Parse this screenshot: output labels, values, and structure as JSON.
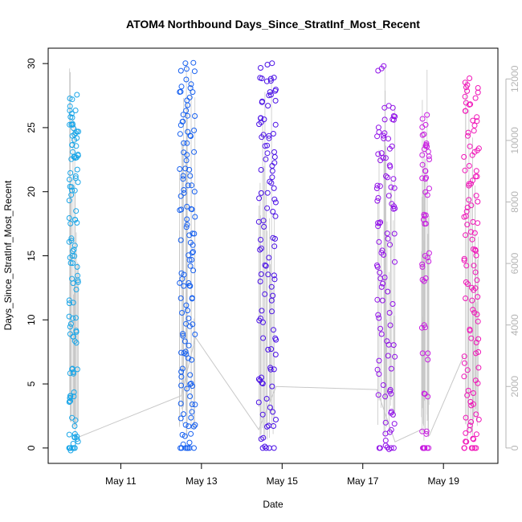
{
  "chart_data": {
    "type": "scatter",
    "title": "ATOM4 Northbound Days_Since_StratInf_Most_Recent",
    "xlabel": "Date",
    "ylabel": "Days_Since_StratInf_Most_Recent",
    "x_ticks": [
      "May 11",
      "May 13",
      "May 15",
      "May 17",
      "May 19"
    ],
    "x_tick_days": [
      11,
      13,
      15,
      17,
      19
    ],
    "xlim": [
      9.2,
      20.35
    ],
    "ylim": [
      -1.2,
      31.2
    ],
    "y_ticks": [
      0,
      5,
      10,
      15,
      20,
      25,
      30
    ],
    "y2lim": [
      -500,
      13000
    ],
    "y2_ticks": [
      0,
      2000,
      4000,
      6000,
      8000,
      10000,
      12000
    ],
    "grid": false,
    "legend": "none",
    "marker": "open circle",
    "series": [
      {
        "color": "#1aa6e8",
        "x_range": [
          9.72,
          9.95
        ],
        "cluster": "May 10",
        "y_values": [
          0,
          0,
          0,
          0,
          0.2,
          0.5,
          1.2,
          2.0,
          3.8,
          4.0,
          4.2,
          5.9,
          6.0,
          8.4,
          8.9,
          9.5,
          10.3,
          11.3,
          12.7,
          13.3,
          14.2,
          14.9,
          15.7,
          16.0,
          17.9,
          18.2,
          19.7,
          20.4,
          20.9,
          21.6,
          22.5,
          22.8,
          23.3,
          23.8,
          24.2,
          24.5,
          25.0,
          25.5,
          26.1,
          26.6,
          27.2
        ]
      },
      {
        "color": "#1660f0",
        "x_range": [
          12.45,
          12.85
        ],
        "cluster": "May 12-13",
        "y_values": [
          0,
          0,
          0,
          0.3,
          0.8,
          1.5,
          2.2,
          3.0,
          3.7,
          4.6,
          5.3,
          6.1,
          7.0,
          7.7,
          8.4,
          9.2,
          10.0,
          10.8,
          11.5,
          12.3,
          13.0,
          13.8,
          14.5,
          15.3,
          16.0,
          16.8,
          17.5,
          18.3,
          19.0,
          19.8,
          20.5,
          21.2,
          22.0,
          22.7,
          23.4,
          24.2,
          24.9,
          25.6,
          26.3,
          27.0,
          27.7,
          28.4,
          29.1,
          29.8
        ]
      },
      {
        "color": "#4a10e6",
        "x_range": [
          14.42,
          14.85
        ],
        "cluster": "May 14-15",
        "y_values": [
          0,
          0,
          0.5,
          1.4,
          2.6,
          3.5,
          4.7,
          5.5,
          6.5,
          7.4,
          8.5,
          9.6,
          10.5,
          11.7,
          12.8,
          13.5,
          14.6,
          15.5,
          16.6,
          17.5,
          18.4,
          19.2,
          20.1,
          21.0,
          21.8,
          22.5,
          23.3,
          24.0,
          24.7,
          25.4,
          26.0,
          26.7,
          27.3,
          28.0,
          28.6,
          29.2,
          29.9
        ]
      },
      {
        "color": "#9010e8",
        "x_range": [
          17.35,
          17.8
        ],
        "cluster": "May 17-18",
        "y_values": [
          0,
          0,
          0.3,
          0.9,
          1.8,
          2.8,
          3.9,
          4.8,
          6.0,
          7.0,
          8.0,
          9.2,
          10.3,
          11.3,
          12.5,
          13.4,
          14.5,
          15.3,
          16.2,
          17.0,
          17.8,
          18.5,
          19.3,
          20.0,
          20.7,
          21.4,
          22.1,
          22.8,
          23.4,
          24.0,
          24.7,
          25.4,
          26.0,
          26.7,
          29.8
        ]
      },
      {
        "color": "#c81ee0",
        "x_range": [
          18.45,
          18.65
        ],
        "cluster": "May 18-19",
        "y_values": [
          0,
          0,
          0,
          0,
          1.3,
          4.3,
          7.0,
          9.5,
          13.0,
          14.4,
          15.1,
          17.8,
          18.3,
          19.9,
          21.1,
          21.8,
          22.8,
          23.3,
          23.9,
          24.7,
          25.6
        ]
      },
      {
        "color": "#f014b8",
        "x_range": [
          19.5,
          19.88
        ],
        "cluster": "May 19-20",
        "y_values": [
          0,
          0,
          0,
          0.4,
          1.0,
          1.8,
          2.6,
          3.6,
          4.5,
          5.4,
          6.4,
          7.5,
          8.5,
          9.5,
          10.5,
          11.5,
          12.3,
          13.2,
          14.0,
          14.8,
          15.6,
          16.4,
          17.2,
          18.0,
          18.8,
          19.6,
          20.4,
          21.2,
          22.0,
          22.8,
          23.6,
          24.4,
          25.2,
          26.0,
          26.6,
          27.5,
          28.2,
          28.5
        ]
      }
    ],
    "secondary_line": {
      "color": "#c8c8c8",
      "x": [
        9.85,
        12.5,
        12.85,
        14.42,
        14.85,
        17.35,
        17.8,
        18.45,
        18.65,
        19.5
      ],
      "y2": [
        300,
        1700,
        3600,
        600,
        2000,
        1900,
        200,
        600,
        400,
        3000
      ]
    }
  }
}
